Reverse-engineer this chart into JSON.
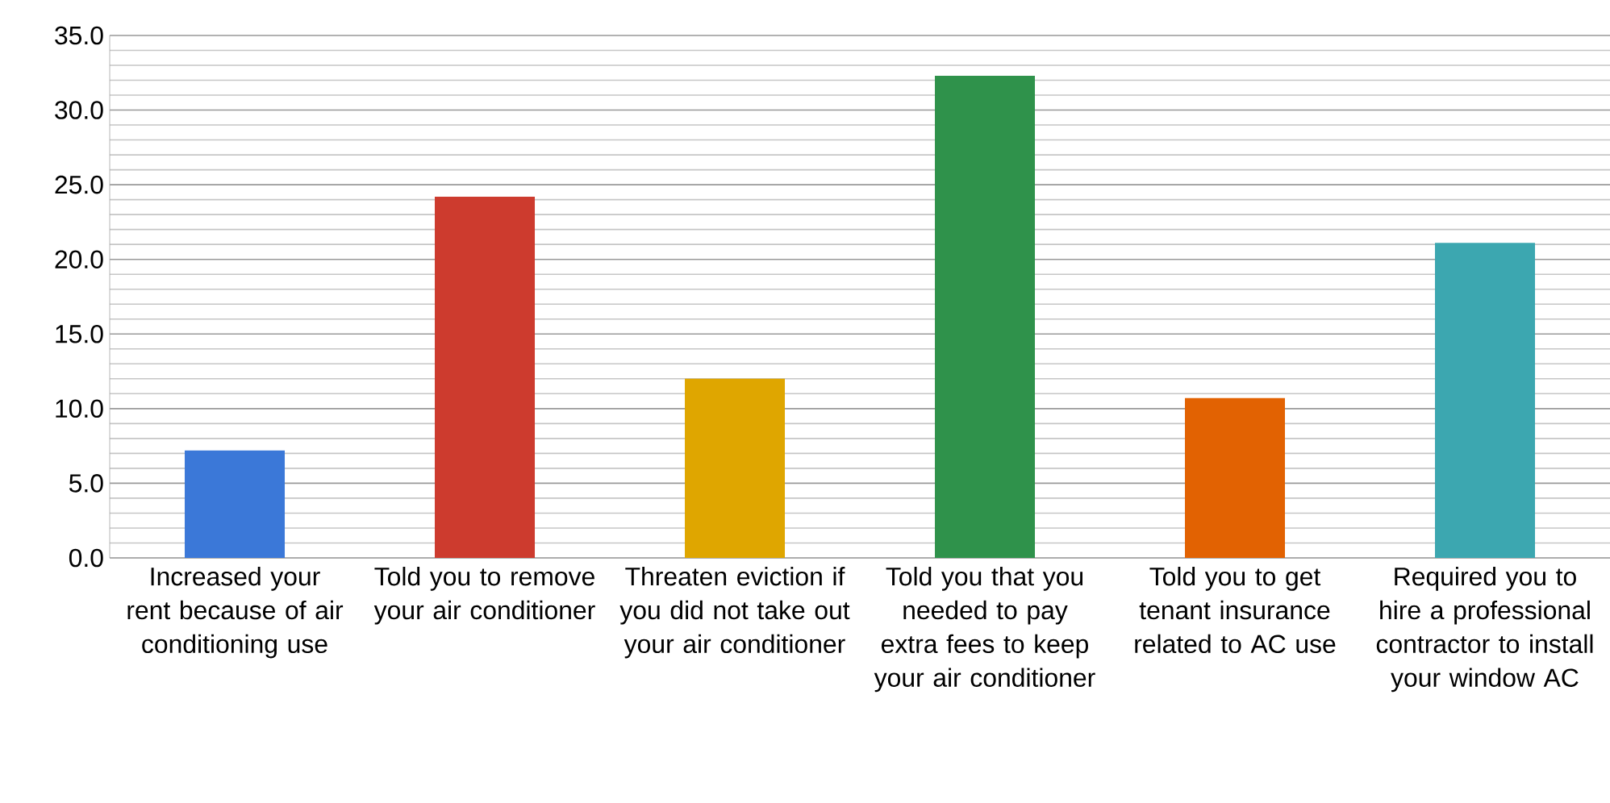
{
  "chart_data": {
    "type": "bar",
    "categories": [
      "Increased your rent because of air conditioning use",
      "Told you to remove your air conditioner",
      "Threaten eviction if you did not take out your air conditioner",
      "Told you that you needed to pay extra fees to keep your air conditioner",
      "Told you to get tenant insurance related to AC use",
      "Required you to hire a professional contractor to install your window AC"
    ],
    "values": [
      7.2,
      24.2,
      12.0,
      32.3,
      10.7,
      21.1
    ],
    "colors": [
      "#3b78d8",
      "#cd3b2e",
      "#dfa600",
      "#2f924b",
      "#e26202",
      "#3ca7b0"
    ],
    "ylim": [
      0,
      35
    ],
    "yticks": [
      {
        "value": 0,
        "label": "0.0"
      },
      {
        "value": 5,
        "label": "5.0"
      },
      {
        "value": 10,
        "label": "10.0"
      },
      {
        "value": 15,
        "label": "15.0"
      },
      {
        "value": 20,
        "label": "20.0"
      },
      {
        "value": 25,
        "label": "25.0"
      },
      {
        "value": 30,
        "label": "30.0"
      },
      {
        "value": 35,
        "label": "35.0"
      }
    ],
    "grid": true
  }
}
